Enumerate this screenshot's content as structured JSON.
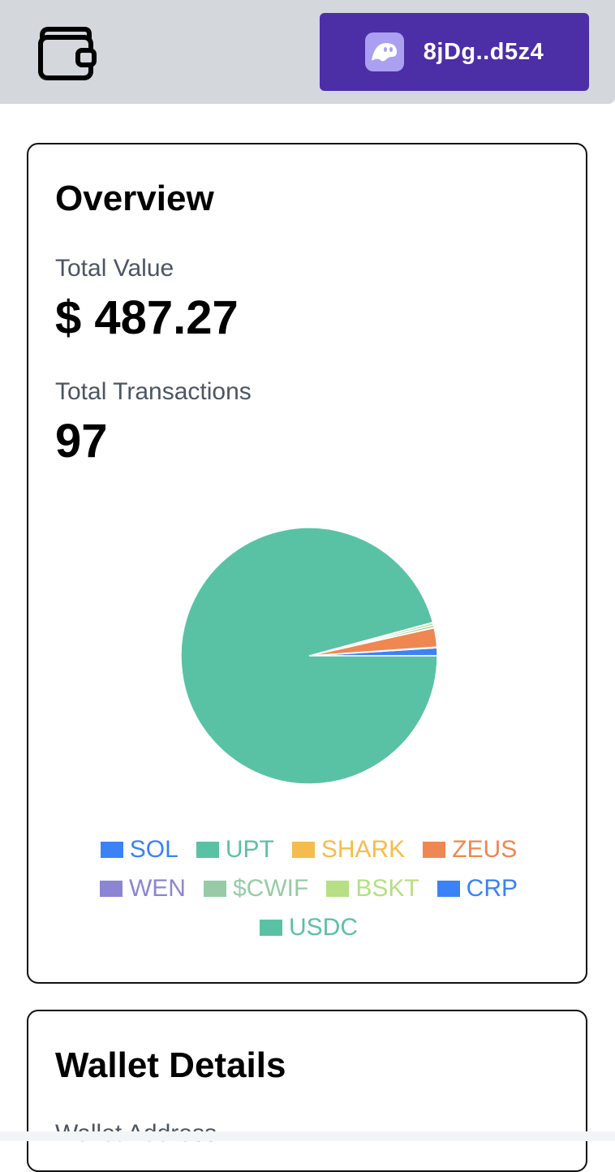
{
  "header": {
    "wallet_icon": "wallet-icon",
    "account_short": "8jDg..d5z4",
    "account_icon": "phantom-ghost-icon",
    "colors": {
      "bar": "#d4d7dc",
      "button": "#4c2ea6",
      "logo": "#ab9ff2"
    }
  },
  "overview": {
    "title": "Overview",
    "total_value_label": "Total Value",
    "total_value": "$ 487.27",
    "total_transactions_label": "Total Transactions",
    "total_transactions": "97"
  },
  "chart_data": {
    "type": "pie",
    "categories": [
      "SOL",
      "UPT",
      "SHARK",
      "ZEUS",
      "WEN",
      "$CWIF",
      "BSKT",
      "CRP",
      "USDC"
    ],
    "values": [
      1.0,
      0.05,
      0.05,
      2.4,
      0.05,
      0.3,
      0.3,
      0.05,
      95.8
    ],
    "colors": [
      "#3b82f6",
      "#5ac2a4",
      "#f5bc4d",
      "#ef8752",
      "#8c85d3",
      "#97cba6",
      "#b5e083",
      "#3b82f6",
      "#5ac2a4"
    ],
    "legend_position": "bottom"
  },
  "details": {
    "title": "Wallet Details",
    "address_label": "Wallet Address"
  }
}
